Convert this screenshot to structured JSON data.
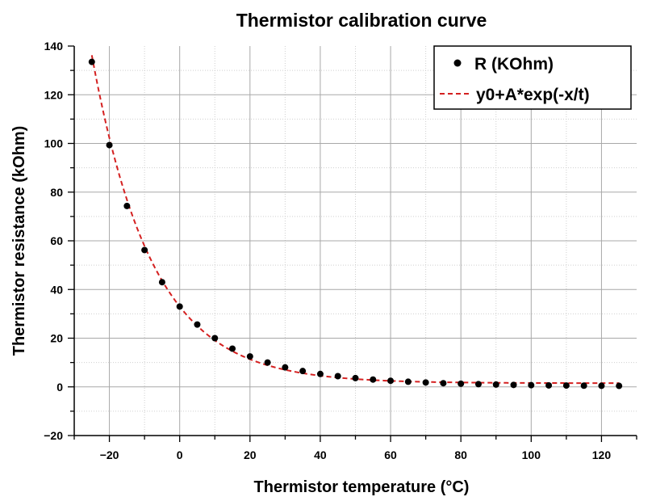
{
  "chart_data": {
    "type": "scatter",
    "title": "Thermistor calibration curve",
    "xlabel": "Thermistor temperature (°C)",
    "ylabel": "Thermistor resistance (kOhm)",
    "xlim": [
      -30,
      130
    ],
    "ylim": [
      -20,
      140
    ],
    "x_ticks": [
      -20,
      0,
      20,
      40,
      60,
      80,
      100,
      120
    ],
    "y_ticks": [
      -20,
      0,
      20,
      40,
      60,
      80,
      100,
      120,
      140
    ],
    "x_tick_labels": [
      "−20",
      "0",
      "20",
      "40",
      "60",
      "80",
      "100",
      "120"
    ],
    "y_tick_labels": [
      "−20",
      "0",
      "20",
      "40",
      "60",
      "80",
      "100",
      "120",
      "140"
    ],
    "grid": true,
    "legend_position": "top-right",
    "series": [
      {
        "name": "R (KOhm)",
        "kind": "scatter",
        "color": "#000000",
        "x": [
          -25,
          -20,
          -15,
          -10,
          -5,
          0,
          5,
          10,
          15,
          20,
          25,
          30,
          35,
          40,
          45,
          50,
          55,
          60,
          65,
          70,
          75,
          80,
          85,
          90,
          95,
          100,
          105,
          110,
          115,
          120,
          125
        ],
        "y": [
          133.5,
          99.3,
          74.3,
          56.2,
          43.0,
          33.0,
          25.6,
          20.0,
          15.7,
          12.5,
          10.0,
          8.0,
          6.5,
          5.3,
          4.4,
          3.6,
          3.0,
          2.5,
          2.1,
          1.8,
          1.5,
          1.3,
          1.1,
          0.95,
          0.8,
          0.7,
          0.6,
          0.55,
          0.5,
          0.45,
          0.4
        ]
      },
      {
        "name": "y0+A*exp(-x/t)",
        "kind": "line",
        "style": "dashed",
        "color": "#d42020",
        "model": {
          "y0": 1.5,
          "A": 31.5,
          "t": 17.2
        }
      }
    ]
  }
}
